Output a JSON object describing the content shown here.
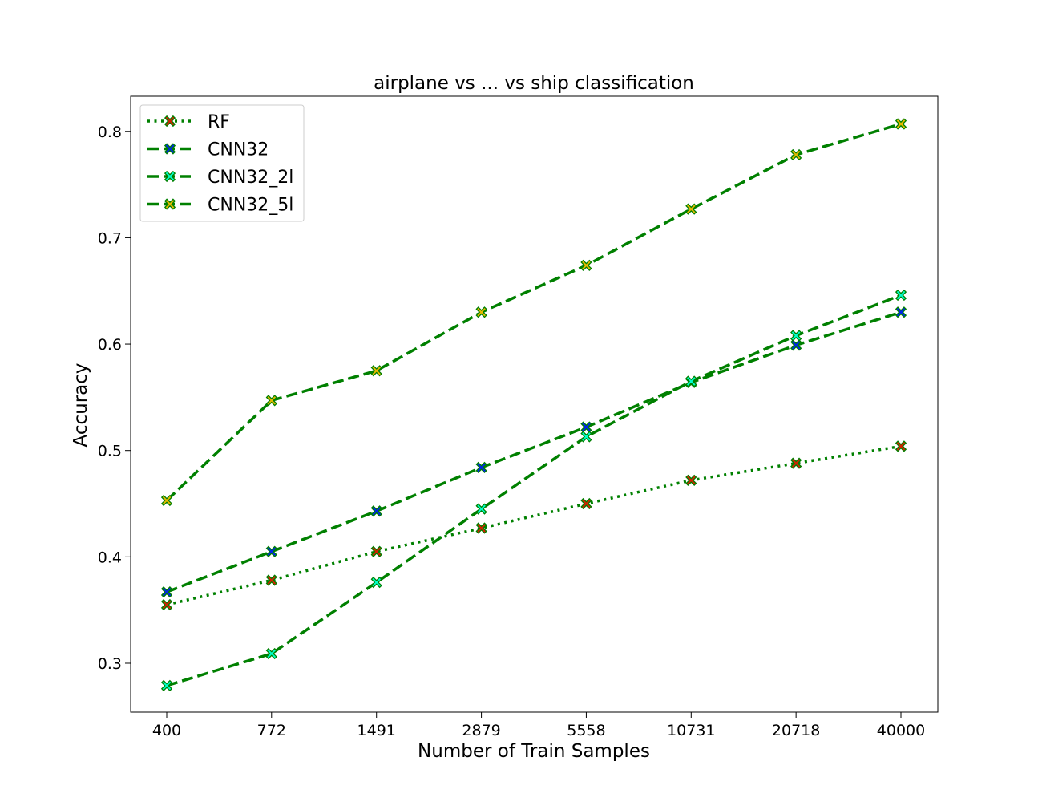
{
  "chart_data": {
    "type": "line",
    "title": "airplane vs ... vs ship classification",
    "xlabel": "Number of Train Samples",
    "ylabel": "Accuracy",
    "xscale": "log",
    "x": [
      400,
      772,
      1491,
      2879,
      5558,
      10731,
      20718,
      40000
    ],
    "xtick_labels": [
      "400",
      "772",
      "1491",
      "2879",
      "5558",
      "10731",
      "20718",
      "40000"
    ],
    "yticks": [
      0.3,
      0.4,
      0.5,
      0.6,
      0.7,
      0.8
    ],
    "ytick_labels": [
      "0.3",
      "0.4",
      "0.5",
      "0.6",
      "0.7",
      "0.8"
    ],
    "ylim": [
      0.254,
      0.833
    ],
    "grid": false,
    "legend_position": "upper-left",
    "line_color": "#008000",
    "series": [
      {
        "name": "RF",
        "linestyle": "dotted",
        "marker_color": "#d62000",
        "values": [
          0.355,
          0.378,
          0.405,
          0.427,
          0.45,
          0.472,
          0.488,
          0.504
        ]
      },
      {
        "name": "CNN32",
        "linestyle": "dashed",
        "marker_color": "#0022ee",
        "values": [
          0.367,
          0.405,
          0.443,
          0.484,
          0.522,
          0.564,
          0.599,
          0.63
        ]
      },
      {
        "name": "CNN32_2l",
        "linestyle": "dashed",
        "marker_color": "#00ffcc",
        "values": [
          0.279,
          0.309,
          0.376,
          0.445,
          0.513,
          0.565,
          0.608,
          0.646
        ]
      },
      {
        "name": "CNN32_5l",
        "linestyle": "dashed",
        "marker_color": "#e6b800",
        "values": [
          0.453,
          0.547,
          0.575,
          0.63,
          0.674,
          0.727,
          0.778,
          0.807
        ]
      }
    ]
  }
}
